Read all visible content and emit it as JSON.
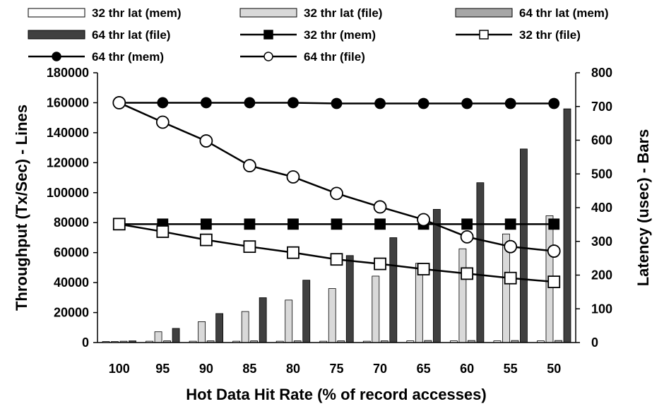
{
  "chart_data": {
    "type": "bar",
    "categories": [
      "100",
      "95",
      "90",
      "85",
      "80",
      "75",
      "70",
      "65",
      "60",
      "55",
      "50"
    ],
    "xlabel": "Hot Data Hit Rate (% of record accesses)",
    "ylabel": "Throughput  (Tx/Sec)  - Lines",
    "y2label": "Latency (usec) - Bars",
    "ylim": [
      0,
      180000
    ],
    "y2lim": [
      0,
      800
    ],
    "yticks": [
      "0",
      "20000",
      "40000",
      "60000",
      "80000",
      "100000",
      "120000",
      "140000",
      "160000",
      "180000"
    ],
    "y2ticks": [
      "0",
      "100",
      "200",
      "300",
      "400",
      "500",
      "600",
      "700",
      "800"
    ],
    "grid": false,
    "legend_position": "top",
    "bar_series": [
      {
        "name": "32 thr lat (mem)",
        "axis": "right",
        "fill": "#ffffff",
        "values": [
          3,
          4,
          4,
          4,
          4,
          4,
          4,
          5,
          5,
          5,
          5
        ]
      },
      {
        "name": "32 thr lat (file)",
        "axis": "right",
        "fill": "#d9d9d9",
        "values": [
          3,
          32,
          62,
          92,
          126,
          160,
          197,
          235,
          278,
          322,
          376
        ]
      },
      {
        "name": "64 thr lat (mem)",
        "axis": "right",
        "fill": "#a6a6a6",
        "values": [
          4,
          5,
          5,
          5,
          5,
          5,
          5,
          6,
          6,
          6,
          6
        ]
      },
      {
        "name": "64 thr lat (file)",
        "axis": "right",
        "fill": "#404040",
        "values": [
          5,
          42,
          86,
          133,
          185,
          258,
          311,
          395,
          474,
          574,
          693
        ]
      }
    ],
    "line_series": [
      {
        "name": "32 thr (mem)",
        "axis": "left",
        "marker": "square",
        "marker_fill": "#000000",
        "values": [
          79000,
          79000,
          79000,
          79000,
          79000,
          79000,
          79000,
          79000,
          79000,
          79000,
          79000
        ]
      },
      {
        "name": "32 thr (file)",
        "axis": "left",
        "marker": "square",
        "marker_fill": "#ffffff",
        "values": [
          79000,
          74000,
          68500,
          64000,
          60000,
          55500,
          52500,
          49000,
          46000,
          43000,
          40500
        ]
      },
      {
        "name": "64 thr (mem)",
        "axis": "left",
        "marker": "circle",
        "marker_fill": "#000000",
        "values": [
          160000,
          160000,
          160000,
          160000,
          160000,
          159500,
          159500,
          159500,
          159500,
          159500,
          159500
        ]
      },
      {
        "name": "64 thr (file)",
        "axis": "left",
        "marker": "circle",
        "marker_fill": "#ffffff",
        "values": [
          160000,
          147000,
          134500,
          118000,
          110500,
          99500,
          90500,
          82000,
          70500,
          64000,
          61000
        ]
      }
    ],
    "legend": [
      {
        "label": "32 thr lat (mem)",
        "kind": "bar",
        "fill": "#ffffff"
      },
      {
        "label": "32 thr lat (file)",
        "kind": "bar",
        "fill": "#d9d9d9"
      },
      {
        "label": "64 thr lat (mem)",
        "kind": "bar",
        "fill": "#a6a6a6"
      },
      {
        "label": "64 thr lat (file)",
        "kind": "bar",
        "fill": "#404040"
      },
      {
        "label": "32 thr (mem)",
        "kind": "line",
        "marker": "square",
        "marker_fill": "#000000"
      },
      {
        "label": "32 thr (file)",
        "kind": "line",
        "marker": "square",
        "marker_fill": "#ffffff"
      },
      {
        "label": "64 thr (mem)",
        "kind": "line",
        "marker": "circle",
        "marker_fill": "#000000"
      },
      {
        "label": "64 thr (file)",
        "kind": "line",
        "marker": "circle",
        "marker_fill": "#ffffff"
      }
    ]
  }
}
